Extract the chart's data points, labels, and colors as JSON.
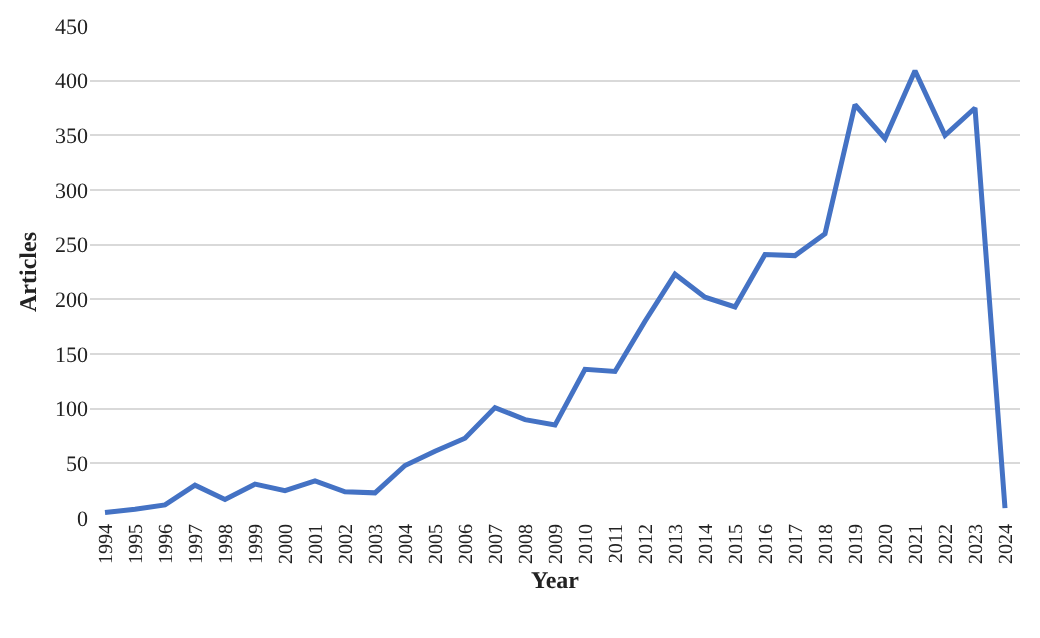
{
  "chart_data": {
    "type": "line",
    "xlabel": "Year",
    "ylabel": "Articles",
    "categories": [
      "1994",
      "1995",
      "1996",
      "1997",
      "1998",
      "1999",
      "2000",
      "2001",
      "2002",
      "2003",
      "2004",
      "2005",
      "2006",
      "2007",
      "2008",
      "2009",
      "2010",
      "2011",
      "2012",
      "2013",
      "2014",
      "2015",
      "2016",
      "2017",
      "2018",
      "2019",
      "2020",
      "2021",
      "2022",
      "2023",
      "2024"
    ],
    "series": [
      {
        "color": "#4472c4",
        "values": [
          5,
          8,
          12,
          30,
          17,
          31,
          25,
          34,
          24,
          23,
          48,
          61,
          73,
          101,
          90,
          85,
          136,
          134,
          180,
          223,
          202,
          193,
          241,
          240,
          260,
          378,
          347,
          409,
          350,
          375,
          9
        ]
      }
    ],
    "ylim": [
      0,
      450
    ],
    "yticks": [
      0,
      50,
      100,
      150,
      200,
      250,
      300,
      350,
      400,
      450
    ],
    "grid": "y",
    "marker": "none",
    "line_style": "solid"
  }
}
